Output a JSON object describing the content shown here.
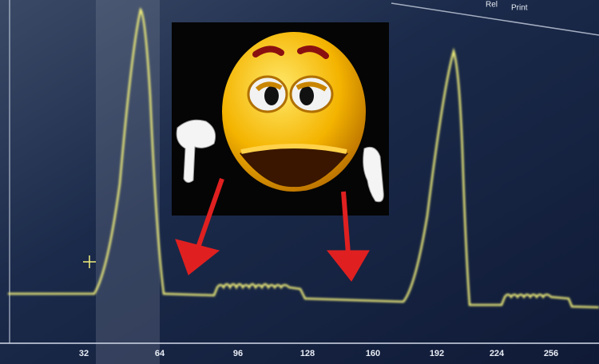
{
  "screen": {
    "buttons": [
      "Rel",
      "Print"
    ],
    "axis_labels": [
      32,
      64,
      96,
      128,
      160,
      192,
      224,
      256
    ]
  }
}
